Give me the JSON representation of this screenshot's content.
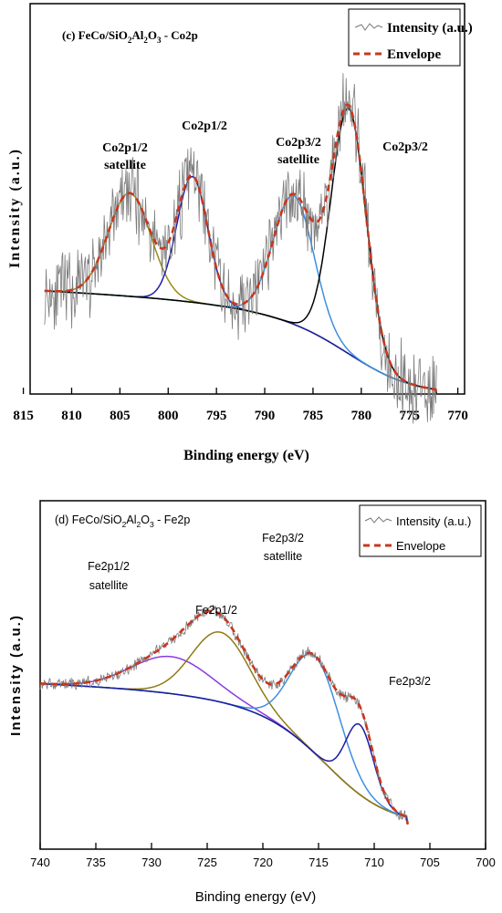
{
  "chart_data": [
    {
      "id": "panel-c",
      "type": "line",
      "title": {
        "prefix": "(c) FeCo/SiO",
        "s1": "2",
        "mid1": "Al",
        "s2": "2",
        "mid2": "O",
        "s3": "3",
        "suffix": " - Co2p"
      },
      "xlabel": "Binding energy (eV)",
      "ylabel": "Intensity (a.u.)",
      "xlim": [
        814.3,
        769.3
      ],
      "ylim": [
        0,
        1
      ],
      "x_reversed": true,
      "x_ticks": [
        815,
        810,
        805,
        800,
        795,
        790,
        785,
        780,
        775,
        770
      ],
      "legend": {
        "position": "top-right",
        "entries": [
          "Intensity (a.u.)",
          "Envelope"
        ]
      },
      "background": {
        "x0": 812.8,
        "x1": 772.2,
        "y0": 0.345,
        "y1": 0.0,
        "slope": 0.165,
        "hump": 0.028
      },
      "components": [
        {
          "name": "Co2p1/2 satellite",
          "center": 804.0,
          "height": 0.345,
          "width": 2.2,
          "color": "#9a8a14"
        },
        {
          "name": "Co2p1/2",
          "center": 797.5,
          "height": 0.42,
          "width": 1.6,
          "color": "#1c1cb0"
        },
        {
          "name": "Co2p3/2 satellite",
          "center": 787.0,
          "height": 0.43,
          "width": 2.1,
          "color": "#3d8ee0"
        },
        {
          "name": "Co2p3/2",
          "center": 781.3,
          "height": 0.82,
          "width": 1.8,
          "color": "#000000"
        }
      ],
      "envelope_color": "#c8371e",
      "background_color": "#5cb828",
      "annotations": [
        {
          "text": [
            "Co2p1/2",
            "satellite"
          ]
        },
        {
          "text": [
            "Co2p1/2"
          ]
        },
        {
          "text": [
            "Co2p3/2",
            "satellite"
          ]
        },
        {
          "text": [
            "Co2p3/2"
          ]
        }
      ],
      "noise_amplitude": 0.11
    },
    {
      "id": "panel-d",
      "type": "line",
      "title": {
        "prefix": "(d) FeCo/SiO",
        "s1": "2",
        "mid1": "Al",
        "s2": "2",
        "mid2": "O",
        "s3": "3",
        "suffix": " - Fe2p"
      },
      "xlabel": "Binding energy (eV)",
      "ylabel": "Intensity (a.u.)",
      "xlim": [
        740,
        700
      ],
      "ylim": [
        0,
        1
      ],
      "x_reversed": true,
      "x_ticks": [
        740,
        735,
        730,
        725,
        720,
        715,
        710,
        705,
        700
      ],
      "legend": {
        "position": "top-right",
        "entries": [
          "Intensity (a.u.)",
          "Envelope"
        ]
      },
      "background": {
        "x0": 740.0,
        "x1": 707.0,
        "y0": 0.7,
        "y1": 0.035,
        "slope": 0.25,
        "hump": 0.05
      },
      "components": [
        {
          "name": "Fe2p1/2 satellite",
          "center": 728.2,
          "height": 0.175,
          "width": 3.6,
          "color": "#8a3ae0"
        },
        {
          "name": "Fe2p1/2",
          "center": 723.8,
          "height": 0.33,
          "width": 2.6,
          "color": "#8f7a12"
        },
        {
          "name": "Fe2p3/2 satellite",
          "center": 715.3,
          "height": 0.46,
          "width": 2.2,
          "color": "#3d8ee0"
        },
        {
          "name": "Fe2p3/2",
          "center": 711.3,
          "height": 0.33,
          "width": 1.25,
          "color": "#1a1aa8"
        }
      ],
      "envelope_color": "#c8371e",
      "background_color": "#5cb828",
      "annotations": [
        {
          "text": [
            "Fe2p1/2",
            "satellite"
          ]
        },
        {
          "text": [
            "Fe2p1/2"
          ]
        },
        {
          "text": [
            "Fe2p3/2",
            "satellite"
          ]
        },
        {
          "text": [
            "Fe2p3/2"
          ]
        }
      ],
      "noise_amplitude": 0.025
    }
  ]
}
